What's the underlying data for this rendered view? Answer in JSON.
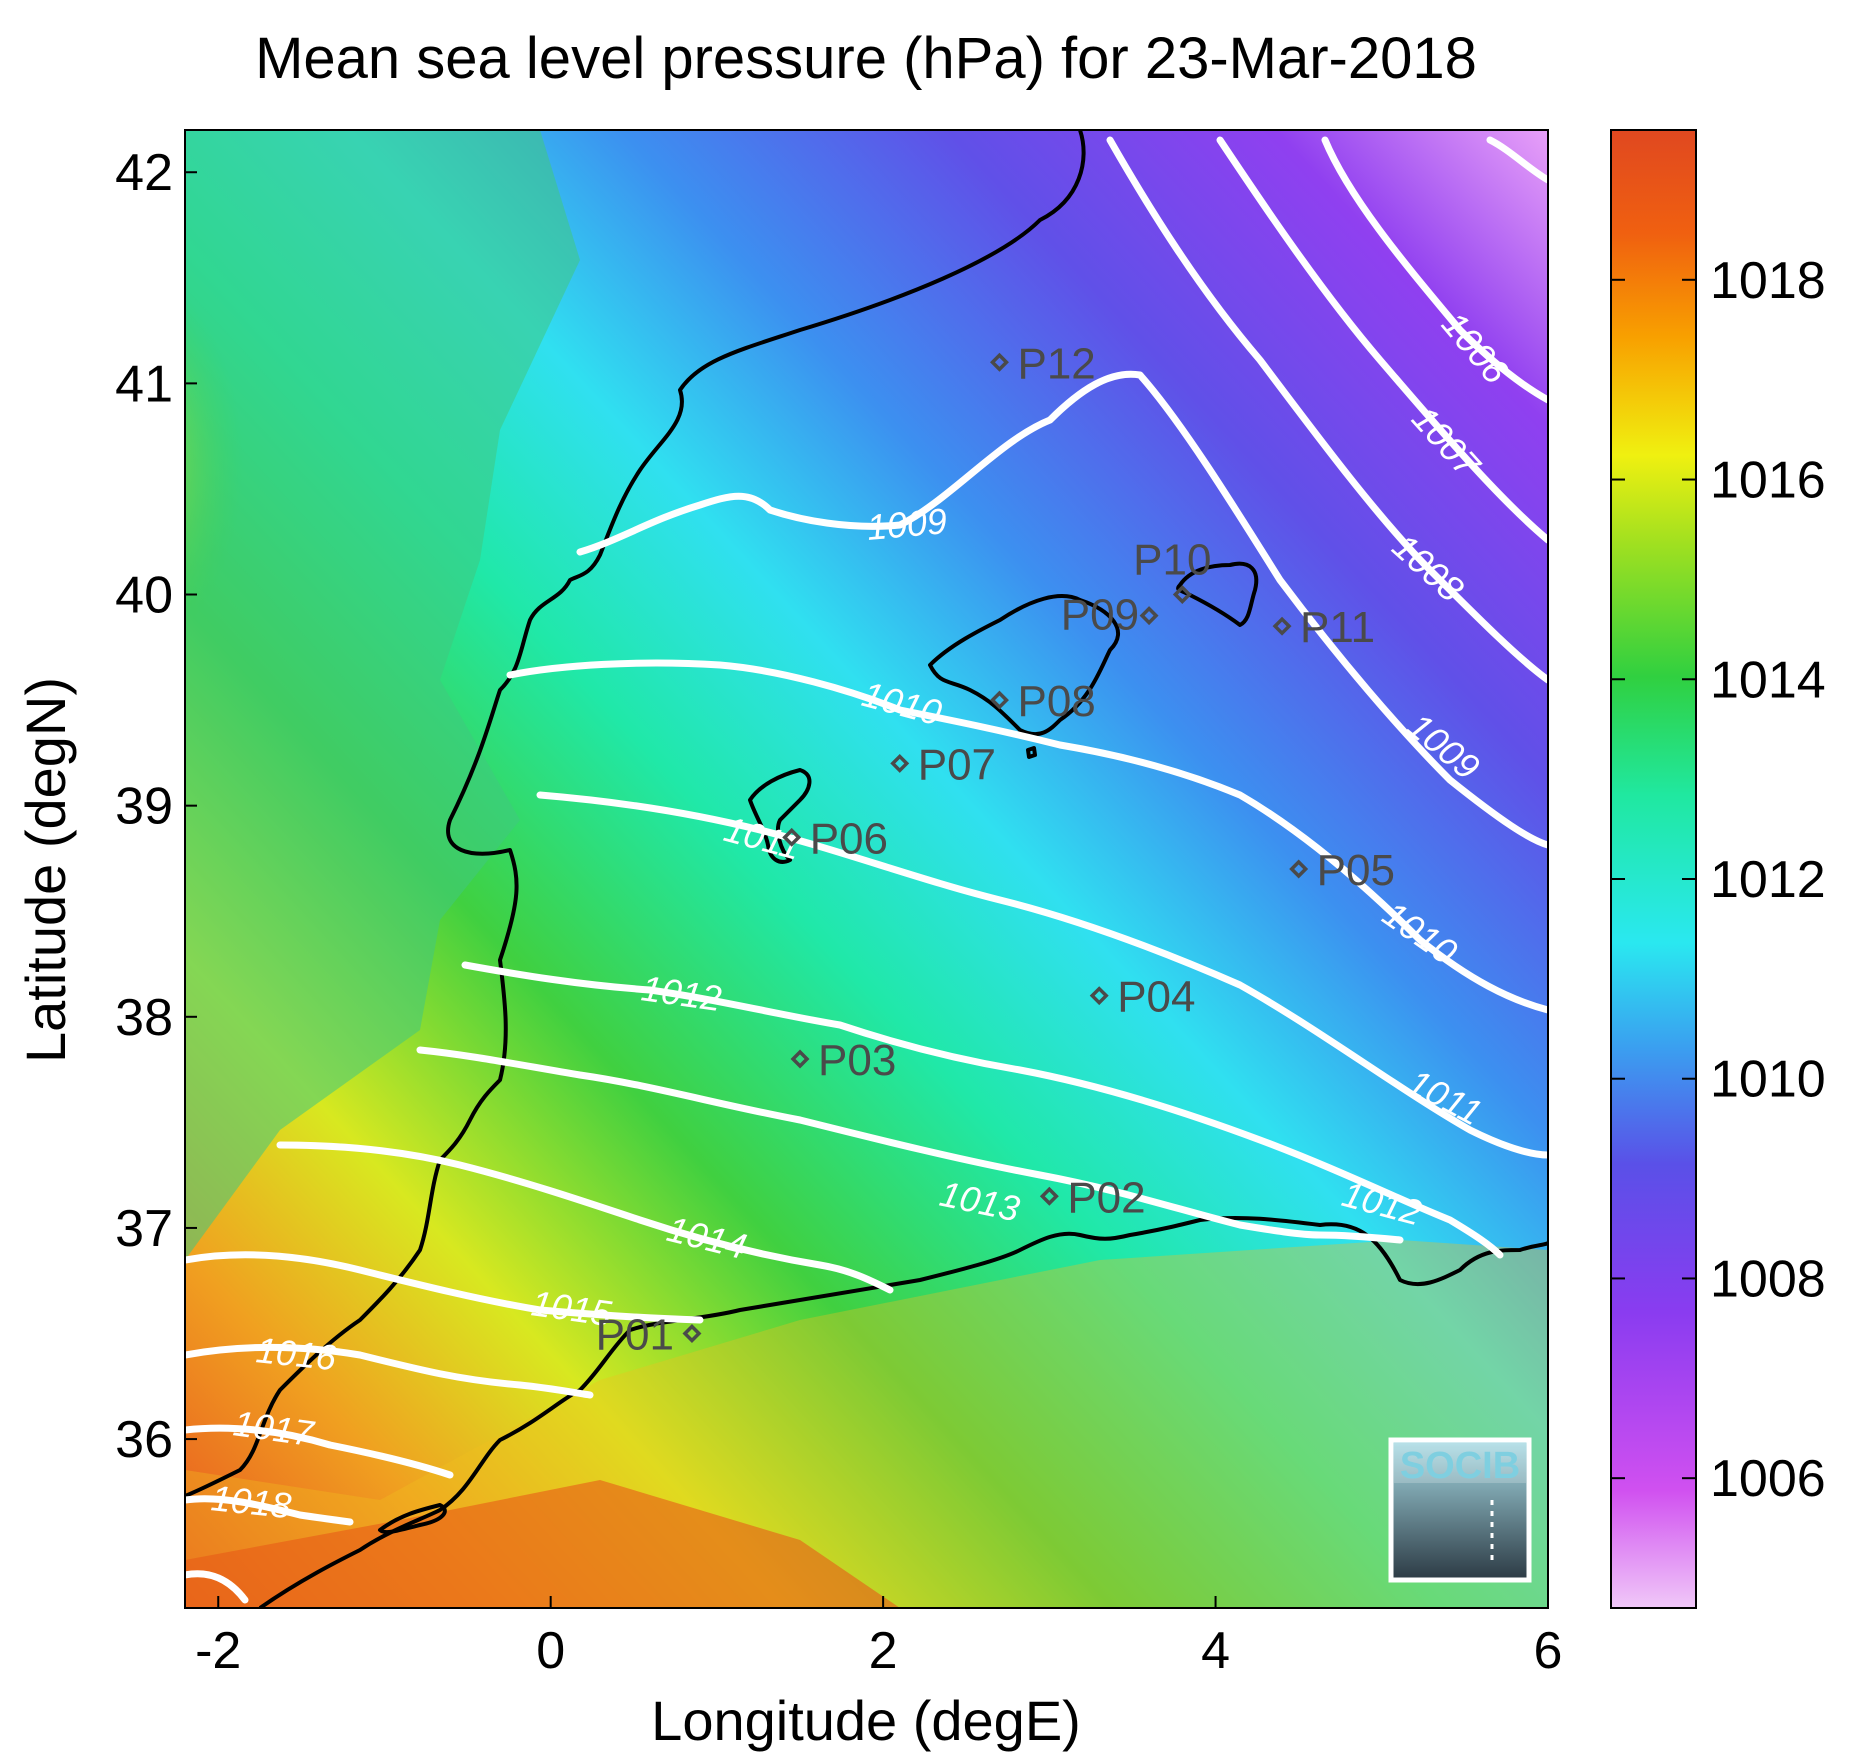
{
  "title": "Mean sea level pressure (hPa) for 23-Mar-2018",
  "xlabel": "Longitude (degE)",
  "ylabel": "Latitude (degN)",
  "x_ticks": [
    "-2",
    "0",
    "2",
    "4",
    "6"
  ],
  "y_ticks": [
    "42",
    "41",
    "40",
    "39",
    "38",
    "37",
    "36"
  ],
  "colorbar": {
    "ticks": [
      "1018",
      "1016",
      "1014",
      "1012",
      "1010",
      "1008",
      "1006"
    ],
    "range": [
      1004.7,
      1019.5
    ]
  },
  "contour_labels": [
    "1006",
    "1007",
    "1008",
    "1009",
    "1009",
    "1010",
    "1010",
    "1011",
    "1011",
    "1012",
    "1012",
    "1013",
    "1014",
    "1015",
    "1016",
    "1017",
    "1018"
  ],
  "stations": [
    {
      "id": "P01",
      "lon": 0.85,
      "lat": 36.5
    },
    {
      "id": "P02",
      "lon": 3.0,
      "lat": 37.15
    },
    {
      "id": "P03",
      "lon": 1.5,
      "lat": 37.8
    },
    {
      "id": "P04",
      "lon": 3.3,
      "lat": 38.1
    },
    {
      "id": "P05",
      "lon": 4.5,
      "lat": 38.7
    },
    {
      "id": "P06",
      "lon": 1.45,
      "lat": 38.85
    },
    {
      "id": "P07",
      "lon": 2.1,
      "lat": 39.2
    },
    {
      "id": "P08",
      "lon": 2.7,
      "lat": 39.5
    },
    {
      "id": "P09",
      "lon": 3.6,
      "lat": 39.9
    },
    {
      "id": "P10",
      "lon": 3.8,
      "lat": 40.0
    },
    {
      "id": "P11",
      "lon": 4.4,
      "lat": 39.85
    },
    {
      "id": "P12",
      "lon": 2.7,
      "lat": 41.1
    }
  ],
  "logo": {
    "text": "SOCIB"
  }
}
